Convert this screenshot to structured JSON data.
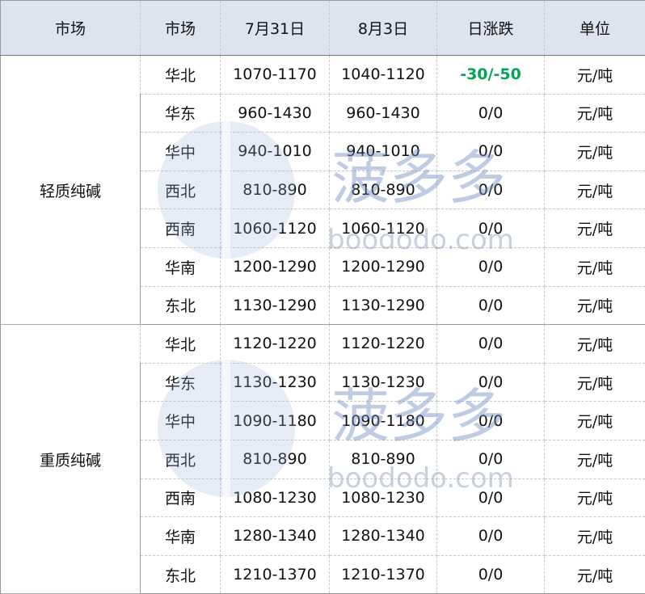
{
  "table": {
    "header": [
      "市场",
      "市场",
      "7月31日",
      "8月3日",
      "日涨跌",
      "单位"
    ],
    "groups": [
      {
        "name": "轻质纯碱",
        "rows": [
          [
            "华北",
            "1070-1170",
            "1040-1120",
            "-30/-50",
            "元/吨"
          ],
          [
            "华东",
            "960-1430",
            "960-1430",
            "0/0",
            "元/吨"
          ],
          [
            "华中",
            "940-1010",
            "940-1010",
            "0/0",
            "元/吨"
          ],
          [
            "西北",
            "810-890",
            "810-890",
            "0/0",
            "元/吨"
          ],
          [
            "西南",
            "1060-1120",
            "1060-1120",
            "0/0",
            "元/吨"
          ],
          [
            "华南",
            "1200-1290",
            "1200-1290",
            "0/0",
            "元/吨"
          ],
          [
            "东北",
            "1130-1290",
            "1130-1290",
            "0/0",
            "元/吨"
          ]
        ]
      },
      {
        "name": "重质纯碱",
        "rows": [
          [
            "华北",
            "1120-1220",
            "1120-1220",
            "0/0",
            "元/吨"
          ],
          [
            "华东",
            "1130-1230",
            "1130-1230",
            "0/0",
            "元/吨"
          ],
          [
            "华中",
            "1090-1180",
            "1090-1180",
            "0/0",
            "元/吨"
          ],
          [
            "西北",
            "810-890",
            "810-890",
            "0/0",
            "元/吨"
          ],
          [
            "西南",
            "1080-1230",
            "1080-1230",
            "0/0",
            "元/吨"
          ],
          [
            "华南",
            "1280-1340",
            "1280-1340",
            "0/0",
            "元/吨"
          ],
          [
            "东北",
            "1210-1370",
            "1210-1370",
            "0/0",
            "元/吨"
          ]
        ]
      }
    ]
  },
  "watermark": {
    "name": "菠多多",
    "site": "boododo.com"
  }
}
